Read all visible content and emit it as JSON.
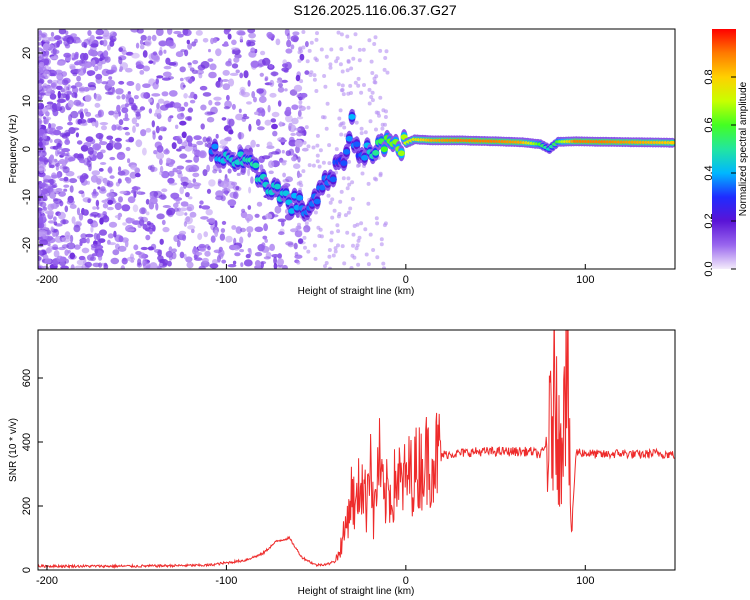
{
  "title": "S126.2025.116.06.37.G27",
  "colors": {
    "axis": "#000000",
    "snr_line": "#ee2b2b",
    "colormap": [
      "#f4ecfb",
      "#9966ee",
      "#5a14d6",
      "#1f2cff",
      "#00b7ff",
      "#22e6a0",
      "#44ff22",
      "#c8ff00",
      "#ffd000",
      "#ff7a00",
      "#ff0000"
    ]
  },
  "chart_data": [
    {
      "type": "heatmap",
      "title": "S126.2025.116.06.37.G27",
      "xlabel": "Height of straight line (km)",
      "ylabel": "Frequency (Hz)",
      "xlim": [
        -205,
        150
      ],
      "ylim": [
        -25,
        25
      ],
      "xticks": [
        -200,
        -100,
        0,
        100
      ],
      "yticks": [
        -20,
        -10,
        0,
        10,
        20
      ],
      "colorbar": {
        "label": "Normalized spectral amplitude",
        "ticks": [
          0.0,
          0.2,
          0.4,
          0.6,
          0.8
        ],
        "range": [
          0,
          1
        ]
      },
      "ridge": [
        {
          "x": -108,
          "f": -1.0,
          "a": 0.35
        },
        {
          "x": -100,
          "f": -1.5,
          "a": 0.45
        },
        {
          "x": -92,
          "f": -3.0,
          "a": 0.45
        },
        {
          "x": -85,
          "f": -4.5,
          "a": 0.5
        },
        {
          "x": -78,
          "f": -6.5,
          "a": 0.45
        },
        {
          "x": -70,
          "f": -9.5,
          "a": 0.45
        },
        {
          "x": -62,
          "f": -11.5,
          "a": 0.4
        },
        {
          "x": -55,
          "f": -12.5,
          "a": 0.35
        },
        {
          "x": -48,
          "f": -9.5,
          "a": 0.35
        },
        {
          "x": -42,
          "f": -6.0,
          "a": 0.35
        },
        {
          "x": -36,
          "f": -3.5,
          "a": 0.3
        },
        {
          "x": -30,
          "f": 5.0,
          "a": 0.4
        },
        {
          "x": -26,
          "f": -2.0,
          "a": 0.3
        },
        {
          "x": -20,
          "f": 0.0,
          "a": 0.45
        },
        {
          "x": -12,
          "f": 1.5,
          "a": 0.6
        },
        {
          "x": -4,
          "f": 0.5,
          "a": 0.65
        },
        {
          "x": 5,
          "f": 2.0,
          "a": 0.75
        },
        {
          "x": 15,
          "f": 1.8,
          "a": 0.85
        },
        {
          "x": 30,
          "f": 1.8,
          "a": 0.9
        },
        {
          "x": 50,
          "f": 1.6,
          "a": 0.9
        },
        {
          "x": 65,
          "f": 1.4,
          "a": 0.85
        },
        {
          "x": 75,
          "f": 1.0,
          "a": 0.6
        },
        {
          "x": 80,
          "f": 0.0,
          "a": 0.45
        },
        {
          "x": 85,
          "f": 1.5,
          "a": 0.6
        },
        {
          "x": 95,
          "f": 1.6,
          "a": 0.9
        },
        {
          "x": 110,
          "f": 1.5,
          "a": 0.9
        },
        {
          "x": 130,
          "f": 1.4,
          "a": 0.85
        },
        {
          "x": 150,
          "f": 1.3,
          "a": 0.8
        }
      ]
    },
    {
      "type": "line",
      "xlabel": "Height of straight line (km)",
      "ylabel": "SNR (10 * v/v)",
      "xlim": [
        -205,
        150
      ],
      "ylim": [
        0,
        750
      ],
      "xticks": [
        -200,
        -100,
        0,
        100
      ],
      "yticks": [
        0,
        200,
        400,
        600
      ],
      "series": [
        {
          "x": [
            -205,
            -150,
            -110,
            -90,
            -80,
            -72,
            -65,
            -58,
            -50,
            -42,
            -38,
            -34,
            -30,
            -28,
            -25,
            -22,
            -20,
            -18,
            -15,
            -12,
            -10,
            -8,
            -5,
            -2,
            0,
            5,
            10,
            15,
            20,
            30,
            40,
            50,
            60,
            70,
            75,
            80,
            82,
            84,
            86,
            88,
            90,
            92,
            95,
            100,
            110,
            120,
            130,
            140,
            150
          ],
          "values": [
            12,
            12,
            15,
            30,
            50,
            90,
            100,
            40,
            15,
            20,
            40,
            120,
            250,
            180,
            300,
            200,
            420,
            150,
            350,
            200,
            260,
            220,
            300,
            260,
            290,
            310,
            340,
            355,
            360,
            365,
            370,
            370,
            370,
            370,
            360,
            400,
            500,
            600,
            300,
            650,
            720,
            100,
            370,
            365,
            360,
            365,
            360,
            365,
            360
          ]
        }
      ]
    }
  ]
}
